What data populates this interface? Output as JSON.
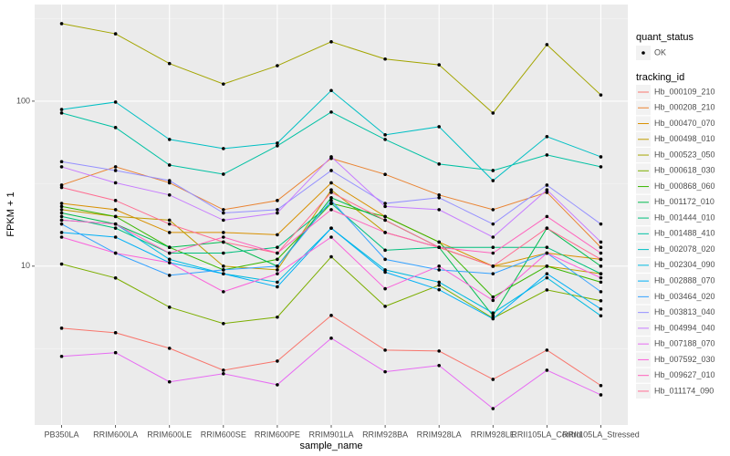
{
  "chart_data": {
    "type": "line",
    "log_y": true,
    "grid": true,
    "x_label": "sample_name",
    "y_label": "FPKM + 1",
    "categories": [
      "PB350LA",
      "RRIM600LA",
      "RRIM600LE",
      "RRIM600SE",
      "RRIM600PE",
      "RRIM901LA",
      "RRIM928BA",
      "RRIM928LA",
      "RRIM928LE",
      "RRII105LA_Control",
      "RRII105LA_Stressed"
    ],
    "ylim": [
      1.09,
      385
    ],
    "yticks": [
      10,
      100
    ],
    "point_legend": {
      "title": "quant_status",
      "labels": [
        "OK"
      ],
      "color": "#000000"
    },
    "legend_title": "tracking_id",
    "series": [
      {
        "name": "Hb_000109_210",
        "color": "#F8766D",
        "values": [
          4.21,
          3.95,
          3.18,
          2.34,
          2.66,
          5.03,
          3.1,
          3.06,
          2.06,
          3.1,
          1.89
        ]
      },
      {
        "name": "Hb_000208_210",
        "color": "#EA8331",
        "values": [
          31,
          40,
          32,
          22,
          25,
          45,
          36,
          27,
          22,
          28,
          13
        ]
      },
      {
        "name": "Hb_000470_070",
        "color": "#D89000",
        "values": [
          24,
          22,
          16,
          16,
          15.5,
          32,
          20,
          14,
          10,
          12,
          11
        ]
      },
      {
        "name": "Hb_000498_010",
        "color": "#C09B00",
        "values": [
          22,
          20,
          19,
          10,
          9.5,
          29,
          16,
          13,
          10,
          10,
          9
        ]
      },
      {
        "name": "Hb_000523_050",
        "color": "#A3A500",
        "values": [
          295,
          256,
          169,
          127,
          164,
          229,
          180,
          166,
          84.7,
          220,
          109
        ]
      },
      {
        "name": "Hb_000618_030",
        "color": "#7CAE00",
        "values": [
          10.3,
          8.48,
          5.64,
          4.49,
          4.91,
          11.4,
          5.71,
          7.66,
          4.84,
          7.18,
          6.17
        ]
      },
      {
        "name": "Hb_000868_060",
        "color": "#39B600",
        "values": [
          23,
          20,
          13,
          9.5,
          11,
          24,
          20,
          14,
          6.5,
          10,
          8
        ]
      },
      {
        "name": "Hb_001172_010",
        "color": "#00BB4E",
        "values": [
          21,
          18,
          13,
          14,
          10,
          26,
          19,
          13,
          5,
          17,
          10
        ]
      },
      {
        "name": "Hb_001444_010",
        "color": "#00BF7D",
        "values": [
          20,
          17,
          12,
          12,
          13,
          24,
          12.5,
          13,
          13,
          13,
          9
        ]
      },
      {
        "name": "Hb_001488_410",
        "color": "#00C1A3",
        "values": [
          84.8,
          69.2,
          41,
          36.1,
          53.6,
          85.9,
          58.6,
          41.6,
          38,
          47.2,
          40
        ]
      },
      {
        "name": "Hb_002078_020",
        "color": "#00BFC4",
        "values": [
          89,
          98.7,
          58.6,
          51.6,
          55.7,
          116,
          62.5,
          70,
          33,
          61,
          46
        ]
      },
      {
        "name": "Hb_002304_090",
        "color": "#00BAE0",
        "values": [
          19,
          18,
          11,
          9,
          8,
          17,
          9.5,
          8,
          5.2,
          8.5,
          5
        ]
      },
      {
        "name": "Hb_002888_070",
        "color": "#00B0F6",
        "values": [
          16,
          15,
          10.5,
          9,
          7.5,
          17,
          9.2,
          7.2,
          4.8,
          9,
          5.5
        ]
      },
      {
        "name": "Hb_003464_020",
        "color": "#35A2FF",
        "values": [
          18,
          12,
          8.8,
          9.5,
          10,
          25,
          11,
          9.5,
          9,
          12,
          7
        ]
      },
      {
        "name": "Hb_003813_040",
        "color": "#9590FF",
        "values": [
          43,
          38,
          33,
          21,
          22,
          38,
          24,
          26,
          18,
          31,
          18
        ]
      },
      {
        "name": "Hb_004994_040",
        "color": "#C77CFF",
        "values": [
          40,
          32,
          27,
          19,
          21,
          46,
          23,
          22,
          15,
          29,
          14
        ]
      },
      {
        "name": "Hb_007188_070",
        "color": "#E76BF3",
        "values": [
          2.84,
          2.99,
          1.99,
          2.23,
          1.91,
          3.66,
          2.29,
          2.5,
          1.37,
          2.34,
          1.66
        ]
      },
      {
        "name": "Hb_007592_030",
        "color": "#FA62DB",
        "values": [
          15,
          12,
          10.5,
          7,
          9,
          15,
          7.3,
          10,
          6.2,
          12,
          8.5
        ]
      },
      {
        "name": "Hb_009627_010",
        "color": "#FF62BC",
        "values": [
          19,
          18,
          12,
          15,
          12,
          22,
          16,
          13,
          12,
          20,
          12
        ]
      },
      {
        "name": "Hb_011174_090",
        "color": "#FF6C91",
        "values": [
          30,
          25,
          18,
          14,
          12,
          28,
          19,
          13,
          10,
          17,
          11
        ]
      }
    ]
  }
}
